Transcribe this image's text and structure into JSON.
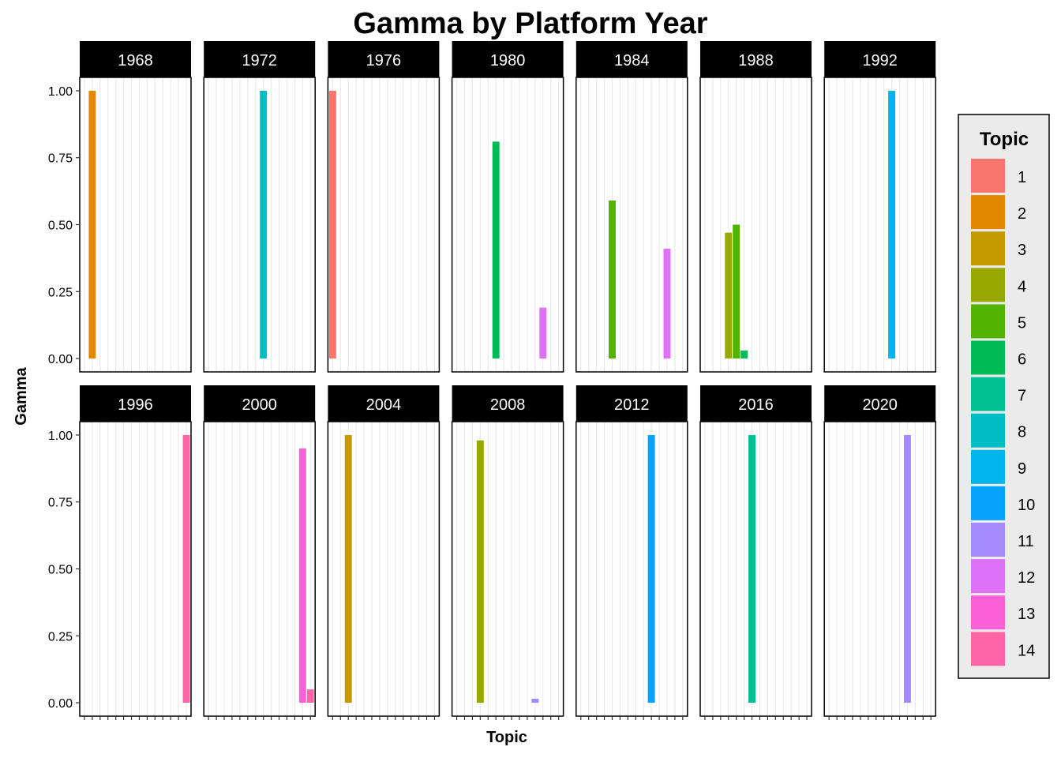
{
  "chart_data": {
    "type": "bar",
    "title": "Gamma by Platform Year",
    "xlabel": "Topic",
    "ylabel": "Gamma",
    "ylim": [
      -0.05,
      1.05
    ],
    "yticks": [
      "0.00",
      "0.25",
      "0.50",
      "0.75",
      "1.00"
    ],
    "topics": [
      1,
      2,
      3,
      4,
      5,
      6,
      7,
      8,
      9,
      10,
      11,
      12,
      13,
      14
    ],
    "legend": {
      "title": "Topic",
      "position": "right",
      "colors": [
        "#F8766D",
        "#E38900",
        "#C49A00",
        "#99A800",
        "#53B400",
        "#00BC56",
        "#00C094",
        "#00BFC4",
        "#00B6EB",
        "#06A4FF",
        "#A58AFF",
        "#DF70F8",
        "#FB61D7",
        "#FF66A8"
      ]
    },
    "facets": [
      {
        "label": "1968",
        "bars": [
          {
            "topic": 2,
            "gamma": 1.0
          }
        ]
      },
      {
        "label": "1972",
        "bars": [
          {
            "topic": 8,
            "gamma": 1.0
          }
        ]
      },
      {
        "label": "1976",
        "bars": [
          {
            "topic": 1,
            "gamma": 1.0
          }
        ]
      },
      {
        "label": "1980",
        "bars": [
          {
            "topic": 6,
            "gamma": 0.81
          },
          {
            "topic": 12,
            "gamma": 0.19
          }
        ]
      },
      {
        "label": "1984",
        "bars": [
          {
            "topic": 5,
            "gamma": 0.59
          },
          {
            "topic": 12,
            "gamma": 0.41
          }
        ]
      },
      {
        "label": "1988",
        "bars": [
          {
            "topic": 4,
            "gamma": 0.47
          },
          {
            "topic": 5,
            "gamma": 0.5
          },
          {
            "topic": 6,
            "gamma": 0.03
          }
        ]
      },
      {
        "label": "1992",
        "bars": [
          {
            "topic": 9,
            "gamma": 1.0
          }
        ]
      },
      {
        "label": "1996",
        "bars": [
          {
            "topic": 14,
            "gamma": 1.0
          }
        ]
      },
      {
        "label": "2000",
        "bars": [
          {
            "topic": 13,
            "gamma": 0.95
          },
          {
            "topic": 14,
            "gamma": 0.05
          }
        ]
      },
      {
        "label": "2004",
        "bars": [
          {
            "topic": 3,
            "gamma": 1.0
          }
        ]
      },
      {
        "label": "2008",
        "bars": [
          {
            "topic": 4,
            "gamma": 0.98
          },
          {
            "topic": 11,
            "gamma": 0.015
          }
        ]
      },
      {
        "label": "2012",
        "bars": [
          {
            "topic": 10,
            "gamma": 1.0
          }
        ]
      },
      {
        "label": "2016",
        "bars": [
          {
            "topic": 7,
            "gamma": 1.0
          }
        ]
      },
      {
        "label": "2020",
        "bars": [
          {
            "topic": 11,
            "gamma": 1.0
          }
        ]
      }
    ]
  }
}
